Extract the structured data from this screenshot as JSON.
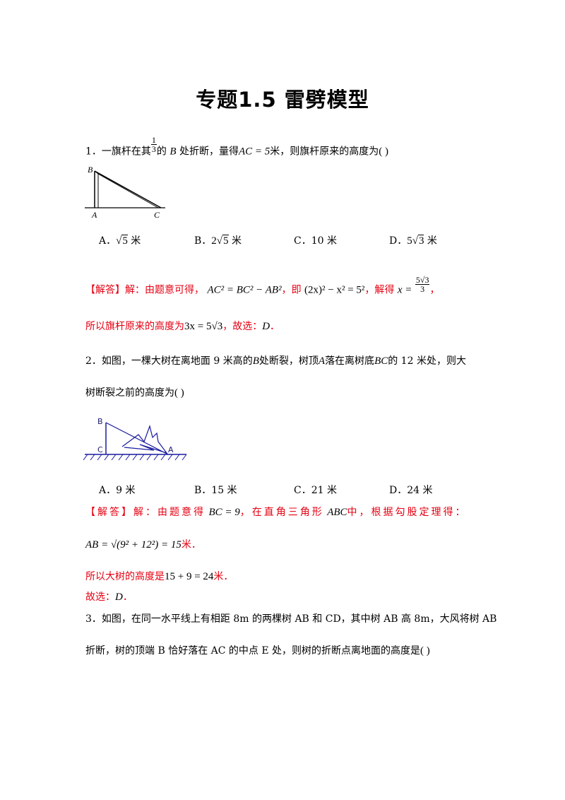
{
  "title": "专题1.5  雷劈模型",
  "q1": {
    "stem_a": "1．一旗杆在其",
    "frac_num": "1",
    "frac_den": "3",
    "stem_b": "的",
    "var_b": "B",
    "stem_c": "处折断，量得",
    "ac_eq": "AC = 5",
    "stem_d": "米，则旗杆原来的高度为",
    "paren": "(        )",
    "fig_labels": [
      "B",
      "A",
      "C"
    ],
    "options": [
      {
        "letter": "A．",
        "value": "5",
        "pre": "",
        "unit": " 米"
      },
      {
        "letter": "B．",
        "value": "5",
        "pre": "2",
        "unit": " 米"
      },
      {
        "letter": "C．",
        "value": "10 米",
        "pre": "",
        "unit": ""
      },
      {
        "letter": "D．",
        "value": "3",
        "pre": "5",
        "unit": " 米"
      }
    ],
    "answer_tag": "【解答】解：由题意可得，",
    "answer_eq1": "AC² = BC² − AB²",
    "answer_mid": "，即",
    "answer_eq2": "(2x)² − x² = 5²",
    "answer_mid2": "，解得",
    "answer_x": "x =",
    "answer_x_num": "5√3",
    "answer_x_den": "3",
    "answer_end": "，",
    "answer2_a": "所以旗杆原来的高度为",
    "answer2_eq": "3x = 5√3",
    "answer2_b": "，故选：",
    "answer2_choice": "D",
    "answer2_c": "．"
  },
  "q2": {
    "stem1_a": "2．如图，一棵大树在离地面 9 米高的",
    "var_b": "B",
    "stem1_b": "处断裂，树顶",
    "var_a": "A",
    "stem1_c": "落在离树底",
    "var_bc": "BC",
    "stem1_d": "的 12 米处，则大",
    "stem2": "树断裂之前的高度为",
    "paren": "(        )",
    "fig_labels": [
      "B",
      "C",
      "A"
    ],
    "options": [
      "A．9 米",
      "B．15 米",
      "C．21 米",
      "D．24 米"
    ],
    "answer_tag": "【解答】解：由题意得",
    "answer_eq1": "BC = 9",
    "answer_mid": "，在直角三角形",
    "answer_abc": "ABC",
    "answer_end": "中，根据勾股定理得：",
    "answer_line2": "AB = √(9² + 12²) = 15",
    "answer_line2_unit": "米．",
    "answer_line3_a": "所以大树的高度是",
    "answer_line3_eq": "15 + 9 = 24",
    "answer_line3_b": "米．",
    "answer_line4_a": "故选：",
    "answer_line4_choice": "D",
    "answer_line4_b": "．"
  },
  "q3": {
    "line1": "3．如图，在同一水平线上有相距 8m 的两棵树 AB 和 CD，其中树 AB 高 8m，大风将树 AB",
    "line2": "折断，树的顶端 B 恰好落在 AC 的中点 E 处，则树的折断点离地面的高度是",
    "paren": "(        )"
  }
}
